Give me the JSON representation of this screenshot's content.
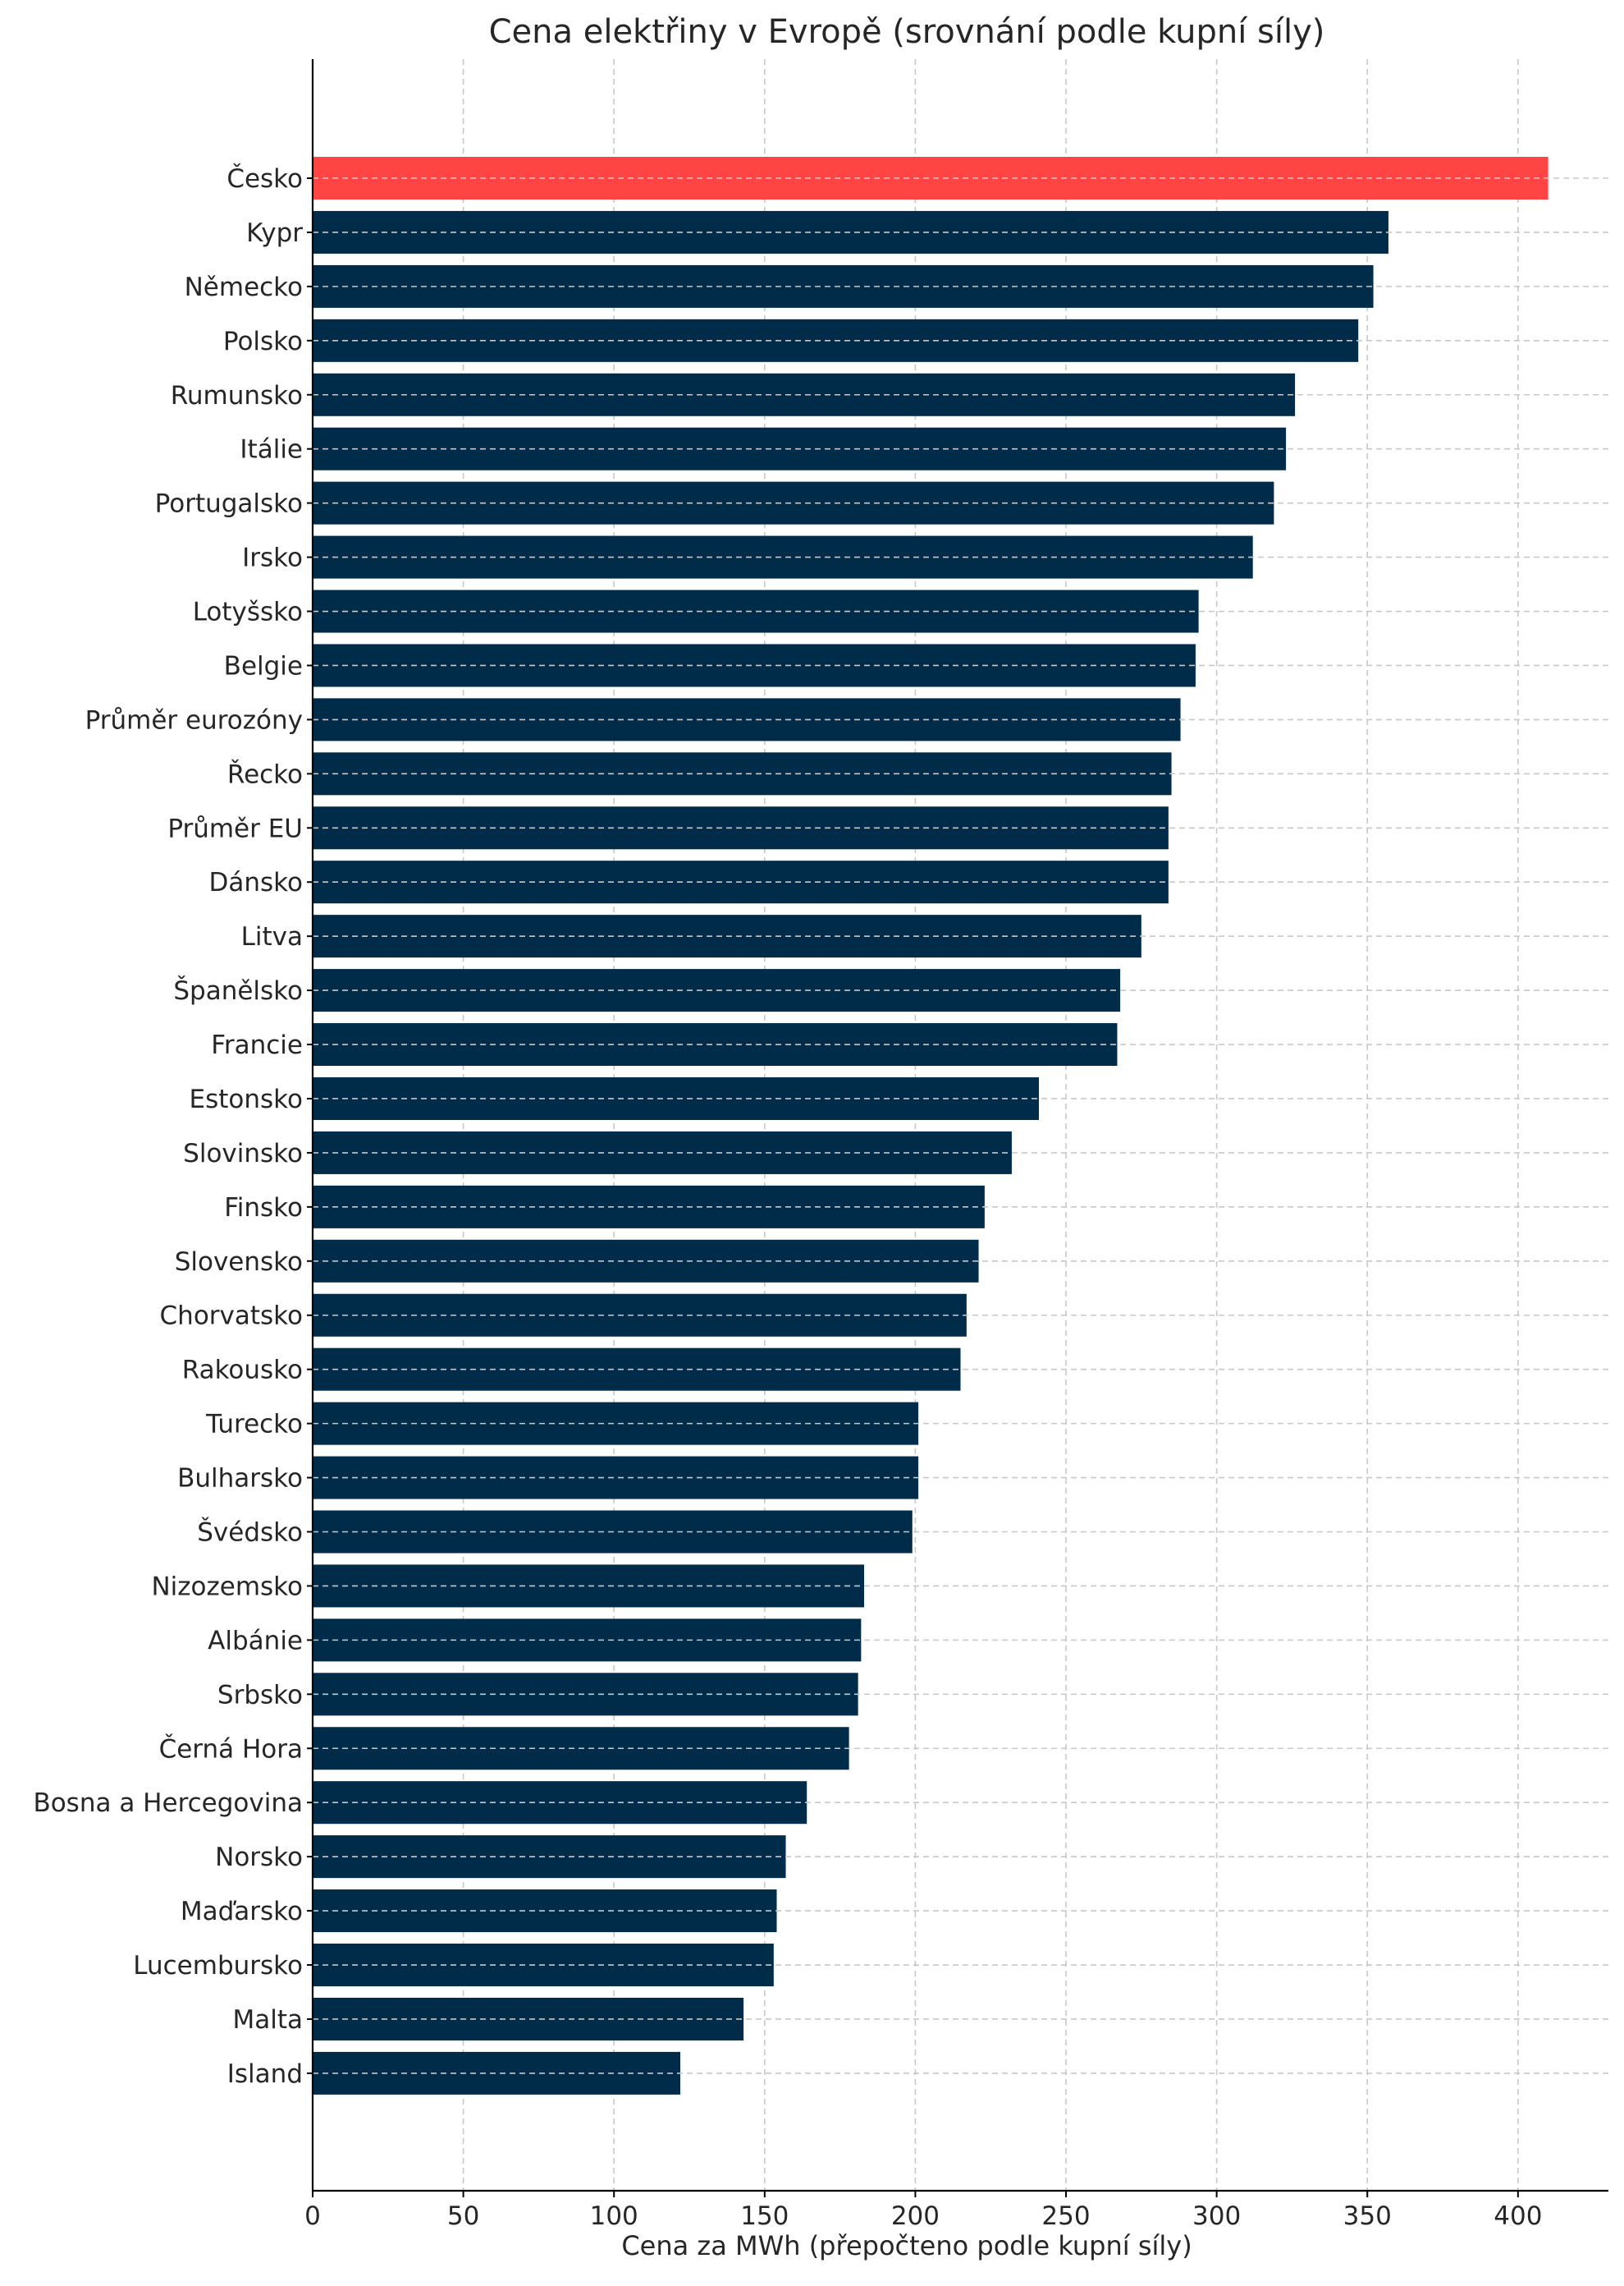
{
  "chart_data": {
    "type": "bar",
    "orientation": "horizontal",
    "title": "Cena elektřiny v Evropě (srovnání podle kupní síly)",
    "xlabel": "Cena za MWh (přepočteno podle kupní síly)",
    "ylabel": "",
    "xlim": [
      0,
      430
    ],
    "xticks": [
      0,
      50,
      100,
      150,
      200,
      250,
      300,
      350,
      400
    ],
    "grid": true,
    "colors": {
      "bar": "#002b49",
      "highlight": "#ff4444"
    },
    "highlight_category": "Česko",
    "categories": [
      "Česko",
      "Kypr",
      "Německo",
      "Polsko",
      "Rumunsko",
      "Itálie",
      "Portugalsko",
      "Irsko",
      "Lotyšsko",
      "Belgie",
      "Průměr eurozóny",
      "Řecko",
      "Průměr EU",
      "Dánsko",
      "Litva",
      "Španělsko",
      "Francie",
      "Estonsko",
      "Slovinsko",
      "Finsko",
      "Slovensko",
      "Chorvatsko",
      "Rakousko",
      "Turecko",
      "Bulharsko",
      "Švédsko",
      "Nizozemsko",
      "Albánie",
      "Srbsko",
      "Černá Hora",
      "Bosna a Hercegovina",
      "Norsko",
      "Maďarsko",
      "Lucembursko",
      "Malta",
      "Island"
    ],
    "values": [
      410,
      357,
      352,
      347,
      326,
      323,
      319,
      312,
      294,
      293,
      288,
      285,
      284,
      284,
      275,
      268,
      267,
      241,
      232,
      223,
      221,
      217,
      215,
      201,
      201,
      199,
      183,
      182,
      181,
      178,
      164,
      157,
      154,
      153,
      143,
      122
    ]
  }
}
